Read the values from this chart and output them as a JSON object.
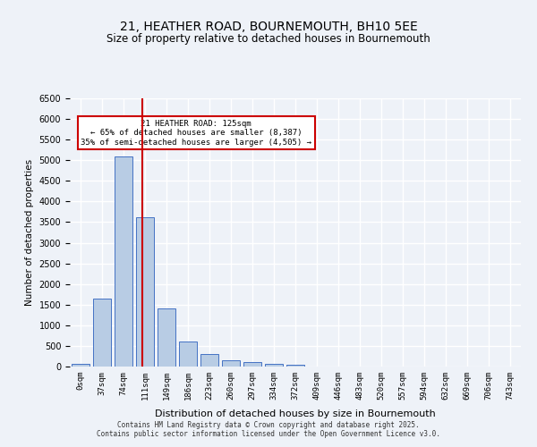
{
  "title_line1": "21, HEATHER ROAD, BOURNEMOUTH, BH10 5EE",
  "title_line2": "Size of property relative to detached houses in Bournemouth",
  "xlabel": "Distribution of detached houses by size in Bournemouth",
  "ylabel": "Number of detached properties",
  "footer_line1": "Contains HM Land Registry data © Crown copyright and database right 2025.",
  "footer_line2": "Contains public sector information licensed under the Open Government Licence v3.0.",
  "bar_color": "#b8cce4",
  "bar_edge_color": "#4472c4",
  "background_color": "#eef2f8",
  "grid_color": "#ffffff",
  "categories": [
    "0sqm",
    "37sqm",
    "74sqm",
    "111sqm",
    "149sqm",
    "186sqm",
    "223sqm",
    "260sqm",
    "297sqm",
    "334sqm",
    "372sqm",
    "409sqm",
    "446sqm",
    "483sqm",
    "520sqm",
    "557sqm",
    "594sqm",
    "632sqm",
    "669sqm",
    "706sqm",
    "743sqm"
  ],
  "values": [
    60,
    1640,
    5100,
    3620,
    1410,
    600,
    310,
    150,
    105,
    75,
    40,
    10,
    0,
    0,
    0,
    0,
    0,
    0,
    0,
    0,
    0
  ],
  "ylim": [
    0,
    6500
  ],
  "yticks": [
    0,
    500,
    1000,
    1500,
    2000,
    2500,
    3000,
    3500,
    4000,
    4500,
    5000,
    5500,
    6000,
    6500
  ],
  "property_size": 125,
  "property_label": "21 HEATHER ROAD: 125sqm",
  "pct_smaller": "65% of detached houses are smaller (8,387)",
  "pct_larger": "35% of semi-detached houses are larger (4,505)",
  "vline_x_index": 2.97,
  "annotation_box_color": "#ffffff",
  "annotation_box_edge_color": "#cc0000",
  "vline_color": "#cc0000"
}
